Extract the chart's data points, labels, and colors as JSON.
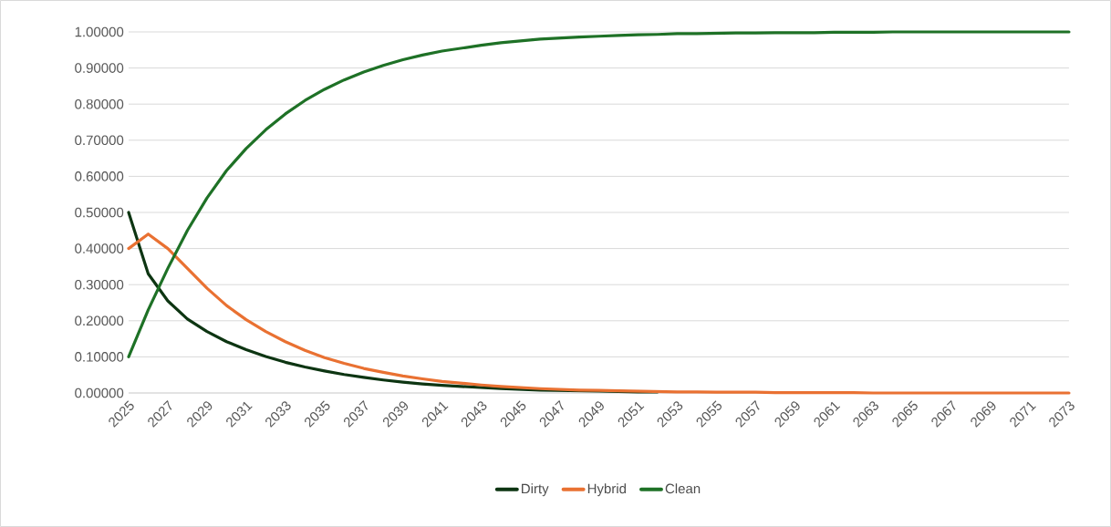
{
  "chart_data": {
    "type": "line",
    "categories": [
      "2025",
      null,
      "2027",
      null,
      "2029",
      null,
      "2031",
      null,
      "2033",
      null,
      "2035",
      null,
      "2037",
      null,
      "2039",
      null,
      "2041",
      null,
      "2043",
      null,
      "2045",
      null,
      "2047",
      null,
      "2049",
      null,
      "2051",
      null,
      "2053",
      null,
      "2055",
      null,
      "2057",
      null,
      "2059",
      null,
      "2061",
      null,
      "2063",
      null,
      "2065",
      null,
      "2067",
      null,
      "2069",
      null,
      "2071",
      null,
      "2073"
    ],
    "series": [
      {
        "name": "Dirty",
        "color": "#0d3512",
        "values": [
          0.5,
          0.33,
          0.255,
          0.205,
          0.17,
          0.142,
          0.12,
          0.101,
          0.085,
          0.072,
          0.061,
          0.051,
          0.043,
          0.036,
          0.03,
          0.025,
          0.021,
          0.018,
          0.015,
          0.012,
          0.01,
          0.008,
          0.007,
          0.006,
          0.005,
          0.004,
          0.003,
          0.003,
          null,
          null,
          null,
          null,
          null,
          null,
          null,
          null,
          null,
          null,
          null,
          null,
          null,
          null,
          null,
          null,
          null,
          null,
          null,
          null,
          null
        ]
      },
      {
        "name": "Hybrid",
        "color": "#e97132",
        "values": [
          0.4,
          0.44,
          0.4,
          0.345,
          0.29,
          0.242,
          0.203,
          0.17,
          0.142,
          0.118,
          0.098,
          0.082,
          0.068,
          0.057,
          0.047,
          0.039,
          0.032,
          0.027,
          0.022,
          0.018,
          0.015,
          0.012,
          0.01,
          0.008,
          0.007,
          0.006,
          0.005,
          0.004,
          0.003,
          0.003,
          0.002,
          0.002,
          0.002,
          0.001,
          0.001,
          0.001,
          0.001,
          0.001,
          0,
          0,
          0,
          0,
          0,
          0,
          0,
          0,
          0,
          0,
          0
        ]
      },
      {
        "name": "Clean",
        "color": "#1e7126",
        "values": [
          0.1,
          0.23,
          0.345,
          0.45,
          0.54,
          0.616,
          0.677,
          0.729,
          0.773,
          0.81,
          0.841,
          0.867,
          0.889,
          0.907,
          0.923,
          0.936,
          0.947,
          0.955,
          0.963,
          0.97,
          0.975,
          0.98,
          0.983,
          0.986,
          0.988,
          0.99,
          0.992,
          0.993,
          0.995,
          0.995,
          0.996,
          0.997,
          0.997,
          0.998,
          0.998,
          0.998,
          0.999,
          0.999,
          0.999,
          1,
          1,
          1,
          1,
          1,
          1,
          1,
          1,
          1,
          1
        ]
      }
    ],
    "ylim": [
      0,
      1
    ],
    "yticks": [
      {
        "value": 0,
        "label": "0.00000"
      },
      {
        "value": 0.1,
        "label": "0.10000"
      },
      {
        "value": 0.2,
        "label": "0.20000"
      },
      {
        "value": 0.3,
        "label": "0.30000"
      },
      {
        "value": 0.4,
        "label": "0.40000"
      },
      {
        "value": 0.5,
        "label": "0.50000"
      },
      {
        "value": 0.6,
        "label": "0.60000"
      },
      {
        "value": 0.7,
        "label": "0.70000"
      },
      {
        "value": 0.8,
        "label": "0.80000"
      },
      {
        "value": 0.9,
        "label": "0.90000"
      },
      {
        "value": 1,
        "label": "1.00000"
      }
    ],
    "grid": "y",
    "legend": "bottom",
    "marker": "none",
    "line_style": "solid"
  }
}
